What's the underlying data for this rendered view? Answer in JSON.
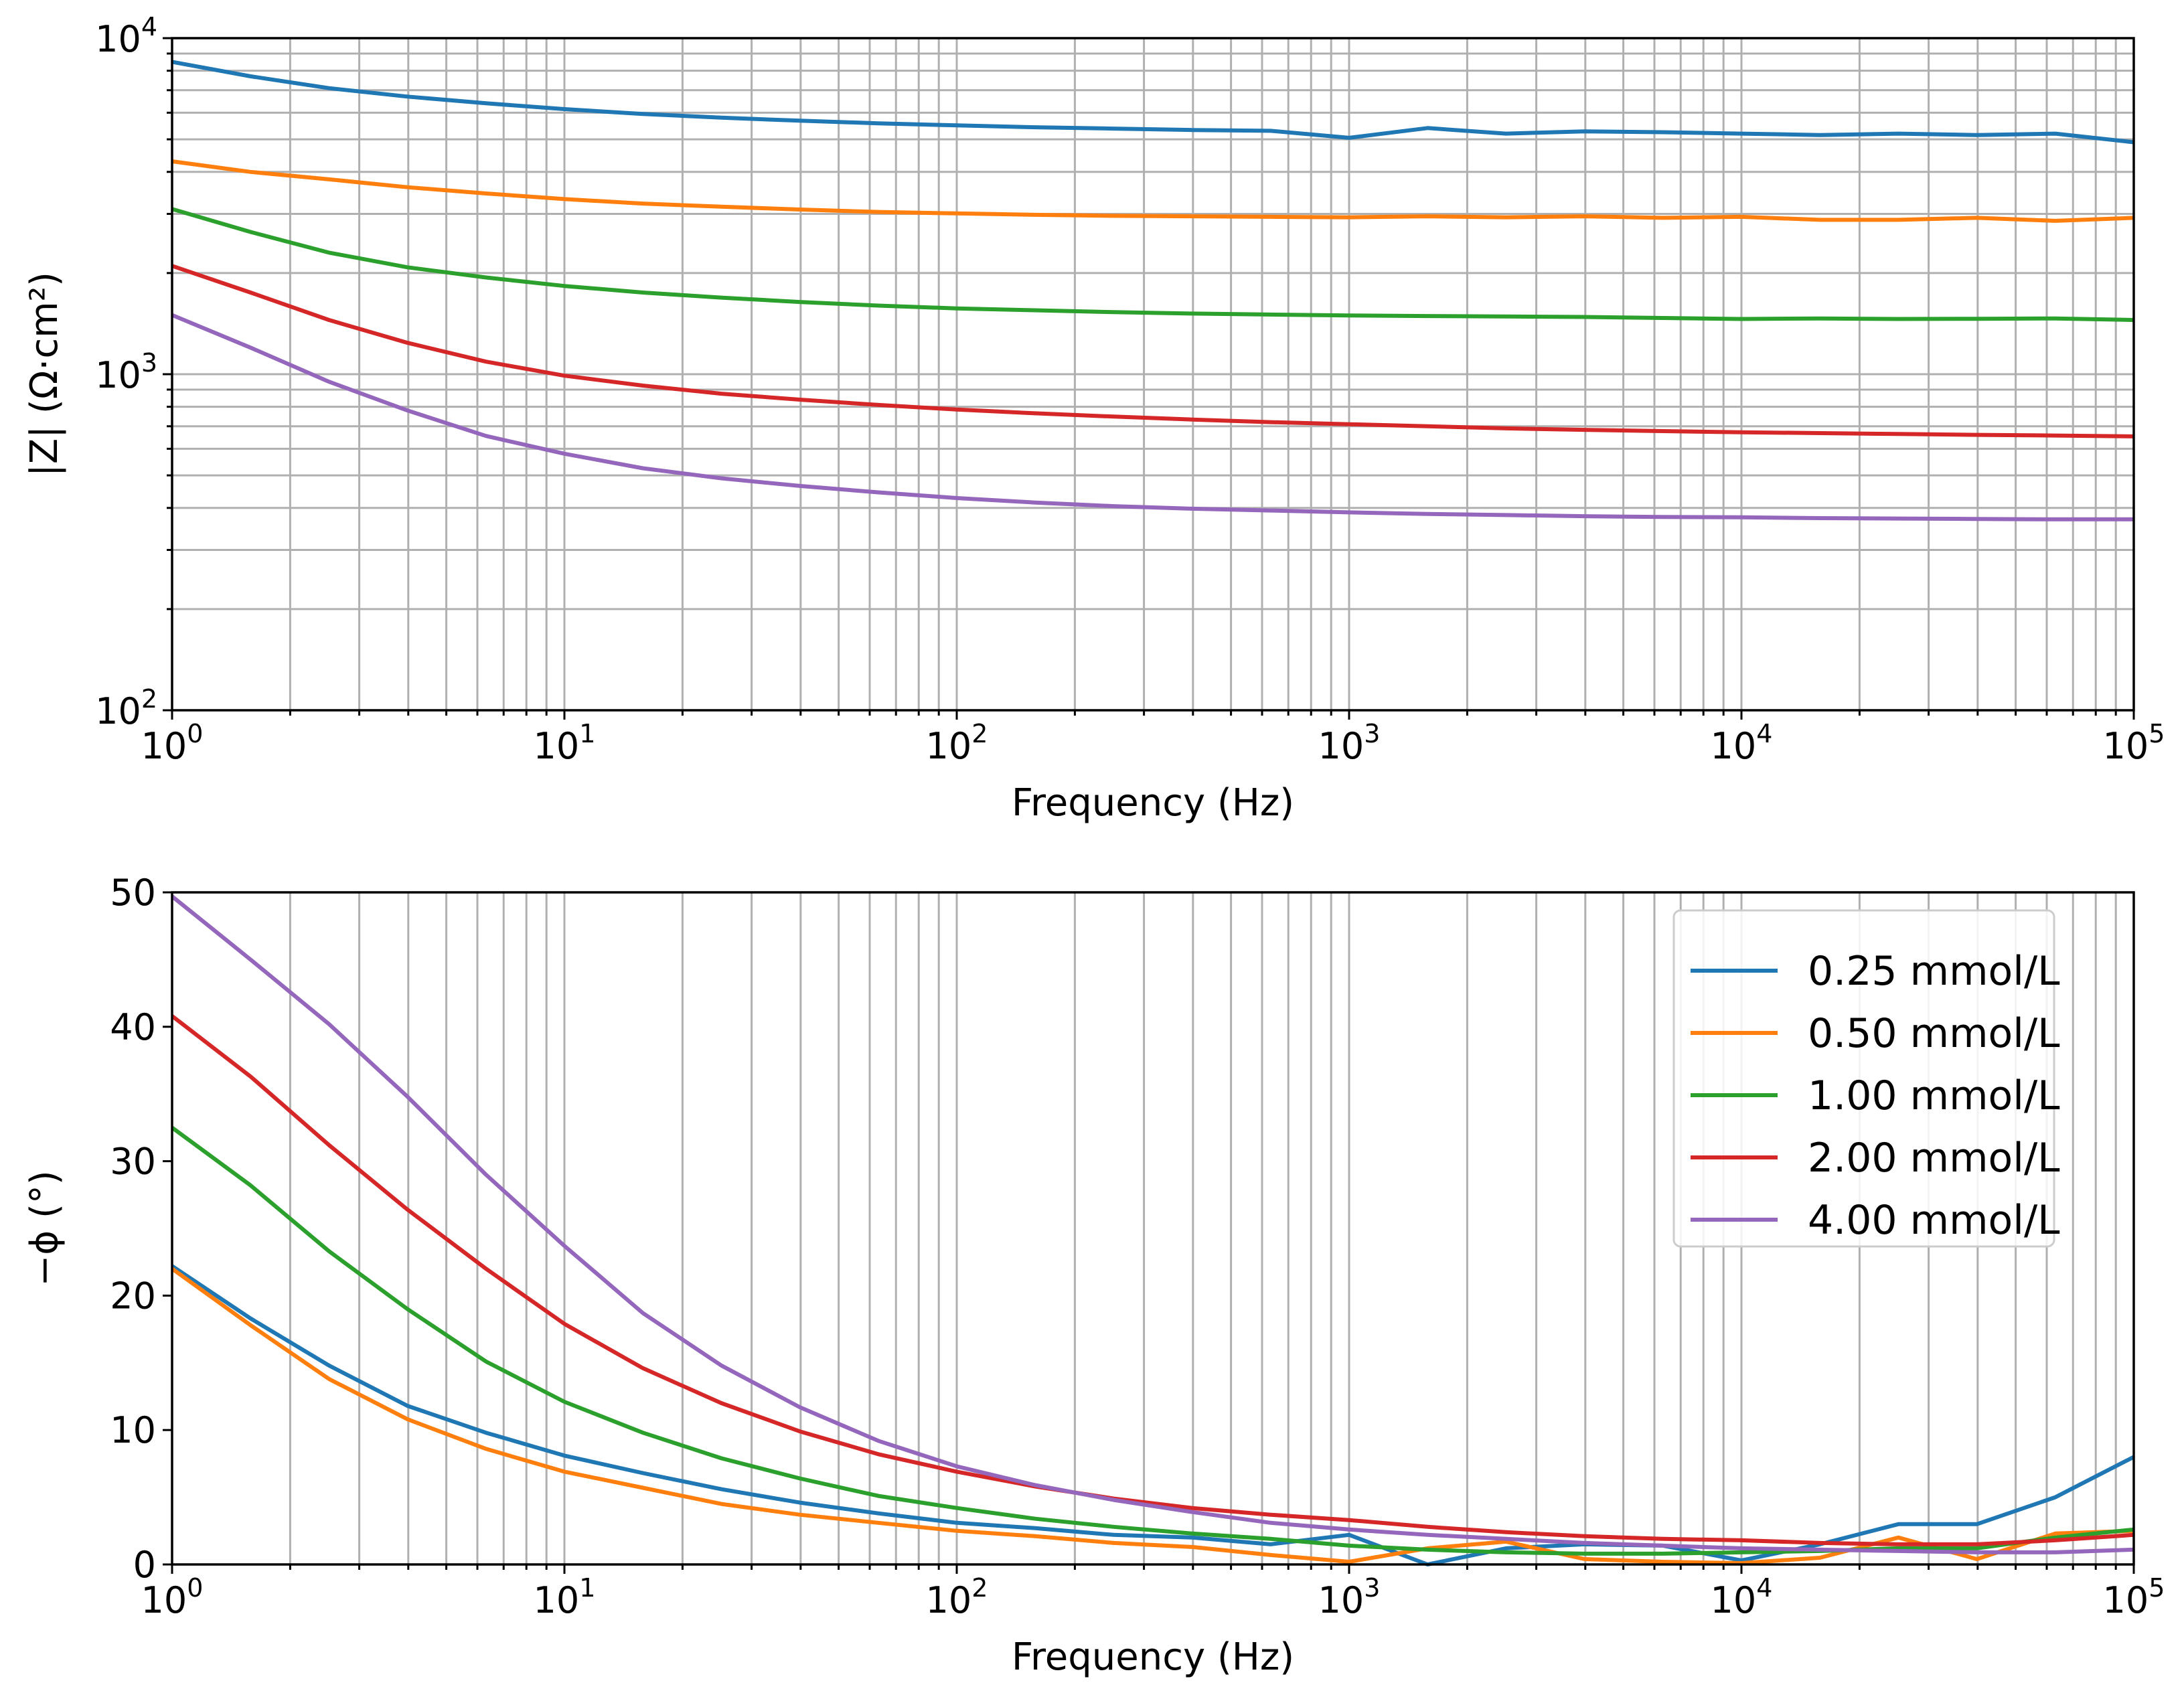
{
  "chart_data": [
    {
      "type": "line",
      "xscale": "log",
      "yscale": "log",
      "xlabel": "Frequency (Hz)",
      "ylabel": "|Z| (Ω·cm²)",
      "xlim": [
        1,
        100000
      ],
      "ylim": [
        100,
        10000
      ],
      "grid": "both-major-minor",
      "x_ticks": [
        {
          "base": "10",
          "exp": "0"
        },
        {
          "base": "10",
          "exp": "1"
        },
        {
          "base": "10",
          "exp": "2"
        },
        {
          "base": "10",
          "exp": "3"
        },
        {
          "base": "10",
          "exp": "4"
        },
        {
          "base": "10",
          "exp": "5"
        }
      ],
      "y_ticks": [
        {
          "base": "10",
          "exp": "2"
        },
        {
          "base": "10",
          "exp": "3"
        },
        {
          "base": "10",
          "exp": "4"
        }
      ],
      "x": [
        1,
        1.585,
        2.512,
        3.981,
        6.31,
        10,
        15.85,
        25.12,
        39.81,
        63.1,
        100,
        158.5,
        251.2,
        398.1,
        631,
        1000,
        1585,
        2512,
        3981,
        6310,
        10000,
        15850,
        25120,
        39810,
        63100,
        100000
      ],
      "series": [
        {
          "name": "0.25 mmol/L",
          "color": "#1f77b4",
          "values": [
            8500,
            7700,
            7100,
            6700,
            6400,
            6150,
            5950,
            5800,
            5680,
            5580,
            5500,
            5430,
            5380,
            5330,
            5300,
            5050,
            5400,
            5200,
            5280,
            5250,
            5200,
            5150,
            5200,
            5150,
            5200,
            4900
          ]
        },
        {
          "name": "0.50 mmol/L",
          "color": "#ff7f0e",
          "values": [
            4300,
            4000,
            3800,
            3600,
            3450,
            3320,
            3220,
            3150,
            3090,
            3040,
            3010,
            2980,
            2960,
            2950,
            2940,
            2930,
            2950,
            2930,
            2950,
            2920,
            2940,
            2880,
            2880,
            2920,
            2860,
            2920
          ]
        },
        {
          "name": "1.00 mmol/L",
          "color": "#2ca02c",
          "values": [
            3100,
            2650,
            2300,
            2080,
            1940,
            1830,
            1750,
            1690,
            1640,
            1600,
            1570,
            1550,
            1530,
            1515,
            1505,
            1495,
            1490,
            1485,
            1480,
            1470,
            1460,
            1465,
            1460,
            1462,
            1465,
            1450
          ]
        },
        {
          "name": "2.00 mmol/L",
          "color": "#d62728",
          "values": [
            2100,
            1750,
            1450,
            1240,
            1090,
            990,
            925,
            875,
            840,
            810,
            785,
            765,
            748,
            733,
            720,
            710,
            700,
            690,
            683,
            677,
            672,
            668,
            664,
            660,
            657,
            653
          ]
        },
        {
          "name": "4.00 mmol/L",
          "color": "#9467bd",
          "values": [
            1500,
            1200,
            950,
            780,
            655,
            580,
            525,
            490,
            465,
            445,
            428,
            415,
            405,
            398,
            393,
            388,
            384,
            381,
            378,
            376,
            375,
            373,
            372,
            371,
            370,
            370
          ]
        }
      ]
    },
    {
      "type": "line",
      "xscale": "log",
      "yscale": "linear",
      "xlabel": "Frequency (Hz)",
      "ylabel": "−ϕ (°)",
      "xlim": [
        1,
        100000
      ],
      "ylim": [
        0,
        50
      ],
      "grid": "x-major-minor",
      "legend_position": "top-right",
      "x_ticks": [
        {
          "base": "10",
          "exp": "0"
        },
        {
          "base": "10",
          "exp": "1"
        },
        {
          "base": "10",
          "exp": "2"
        },
        {
          "base": "10",
          "exp": "3"
        },
        {
          "base": "10",
          "exp": "4"
        },
        {
          "base": "10",
          "exp": "5"
        }
      ],
      "y_ticks": [
        "0",
        "10",
        "20",
        "30",
        "40",
        "50"
      ],
      "x": [
        1,
        1.585,
        2.512,
        3.981,
        6.31,
        10,
        15.85,
        25.12,
        39.81,
        63.1,
        100,
        158.5,
        251.2,
        398.1,
        631,
        1000,
        1585,
        2512,
        3981,
        6310,
        10000,
        15850,
        25120,
        39810,
        63100,
        100000
      ],
      "series": [
        {
          "name": "0.25 mmol/L",
          "color": "#1f77b4",
          "values": [
            22.2,
            18.3,
            14.8,
            11.8,
            9.8,
            8.1,
            6.8,
            5.6,
            4.6,
            3.8,
            3.1,
            2.7,
            2.2,
            2.0,
            1.5,
            2.2,
            0.0,
            1.2,
            1.5,
            1.4,
            0.3,
            1.5,
            3.0,
            3.0,
            5.0,
            8.0
          ]
        },
        {
          "name": "0.50 mmol/L",
          "color": "#ff7f0e",
          "values": [
            22.0,
            17.8,
            13.8,
            10.8,
            8.6,
            6.9,
            5.7,
            4.5,
            3.7,
            3.1,
            2.5,
            2.1,
            1.6,
            1.3,
            0.7,
            0.2,
            1.2,
            1.7,
            0.4,
            0.2,
            0.1,
            0.5,
            2.0,
            0.4,
            2.3,
            2.5
          ]
        },
        {
          "name": "1.00 mmol/L",
          "color": "#2ca02c",
          "values": [
            32.5,
            28.2,
            23.3,
            19.0,
            15.1,
            12.1,
            9.8,
            7.9,
            6.4,
            5.1,
            4.2,
            3.4,
            2.8,
            2.3,
            1.9,
            1.4,
            1.1,
            0.9,
            0.8,
            0.8,
            0.9,
            1.0,
            1.2,
            1.2,
            2.0,
            2.6
          ]
        },
        {
          "name": "2.00 mmol/L",
          "color": "#d62728",
          "values": [
            40.8,
            36.3,
            31.2,
            26.4,
            22.0,
            17.9,
            14.6,
            12.0,
            9.9,
            8.2,
            6.9,
            5.8,
            4.9,
            4.2,
            3.7,
            3.3,
            2.8,
            2.4,
            2.1,
            1.9,
            1.8,
            1.6,
            1.5,
            1.5,
            1.8,
            2.2
          ]
        },
        {
          "name": "4.00 mmol/L",
          "color": "#9467bd",
          "values": [
            49.7,
            45.0,
            40.2,
            34.8,
            29.0,
            23.7,
            18.7,
            14.8,
            11.7,
            9.2,
            7.3,
            5.9,
            4.8,
            3.9,
            3.1,
            2.6,
            2.2,
            1.9,
            1.6,
            1.4,
            1.2,
            1.1,
            1.0,
            0.9,
            0.9,
            1.1
          ]
        }
      ]
    }
  ]
}
